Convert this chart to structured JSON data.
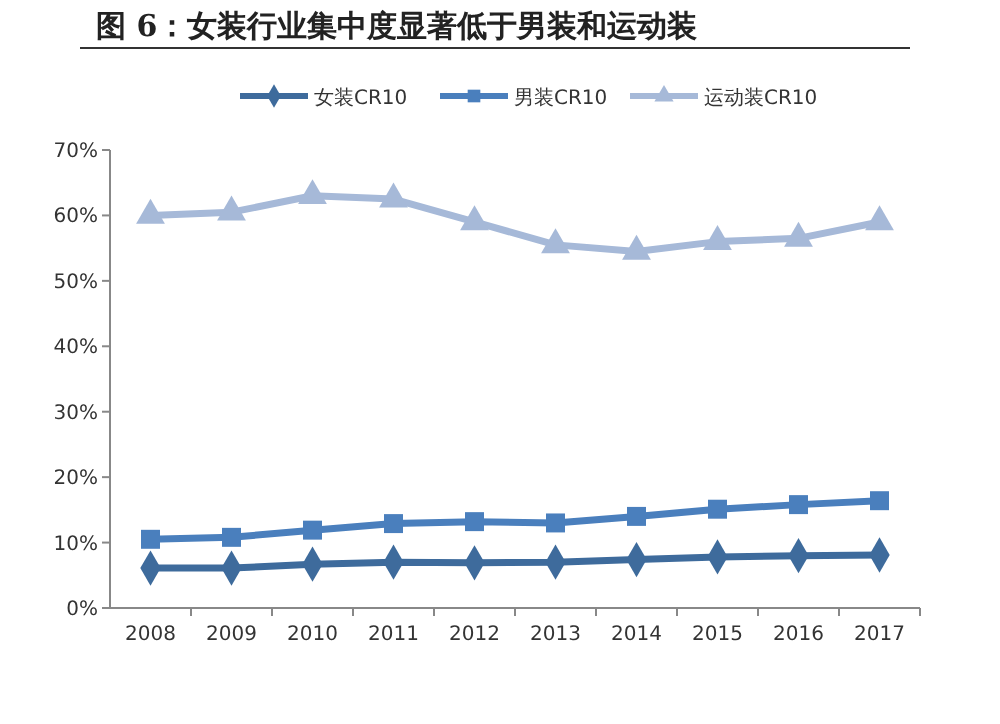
{
  "chart_data": {
    "type": "line",
    "title": "图 6：女装行业集中度显著低于男装和运动装",
    "categories": [
      "2008",
      "2009",
      "2010",
      "2011",
      "2012",
      "2013",
      "2014",
      "2015",
      "2016",
      "2017"
    ],
    "series": [
      {
        "name": "女装CR10",
        "color": "#3e6b9c",
        "marker": "diamond",
        "values": [
          6.1,
          6.1,
          6.7,
          7.0,
          6.9,
          7.0,
          7.4,
          7.8,
          8.0,
          8.1
        ]
      },
      {
        "name": "男装CR10",
        "color": "#4a7fbd",
        "marker": "square",
        "values": [
          10.5,
          10.8,
          11.9,
          12.9,
          13.2,
          13.0,
          14.0,
          15.1,
          15.8,
          16.4
        ]
      },
      {
        "name": "运动装CR10",
        "color": "#a6b9d8",
        "marker": "triangle",
        "values": [
          60,
          60.5,
          63,
          62.5,
          59,
          55.5,
          54.5,
          56,
          56.5,
          59
        ]
      }
    ],
    "ylim": [
      0,
      70
    ],
    "yticks": [
      {
        "value": 0,
        "label": "0%"
      },
      {
        "value": 10,
        "label": "10%"
      },
      {
        "value": 20,
        "label": "20%"
      },
      {
        "value": 30,
        "label": "30%"
      },
      {
        "value": 40,
        "label": "40%"
      },
      {
        "value": 50,
        "label": "50%"
      },
      {
        "value": 60,
        "label": "60%"
      },
      {
        "value": 70,
        "label": "70%"
      }
    ],
    "grid": false,
    "legend": "top",
    "line_style": "solid"
  }
}
